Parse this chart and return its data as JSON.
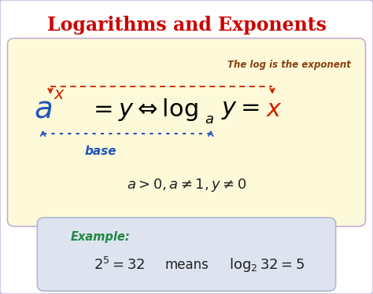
{
  "title": "Logarithms and Exponents",
  "title_color": "#cc0000",
  "bg_color": "#ffffff",
  "outer_border_color": "#c0b0d8",
  "top_box_color": "#fef9d8",
  "top_box_edge_color": "#c0b0d8",
  "bottom_box_color": "#dde3ef",
  "bottom_box_edge_color": "#b0b8cc",
  "annotation_text": "The log is the exponent",
  "annotation_color": "#8b4010",
  "base_label": "base",
  "base_color": "#2255bb",
  "red_arrow_color": "#cc2200",
  "blue_arrow_color": "#2255bb",
  "example_label": "Example:",
  "example_label_color": "#228844"
}
